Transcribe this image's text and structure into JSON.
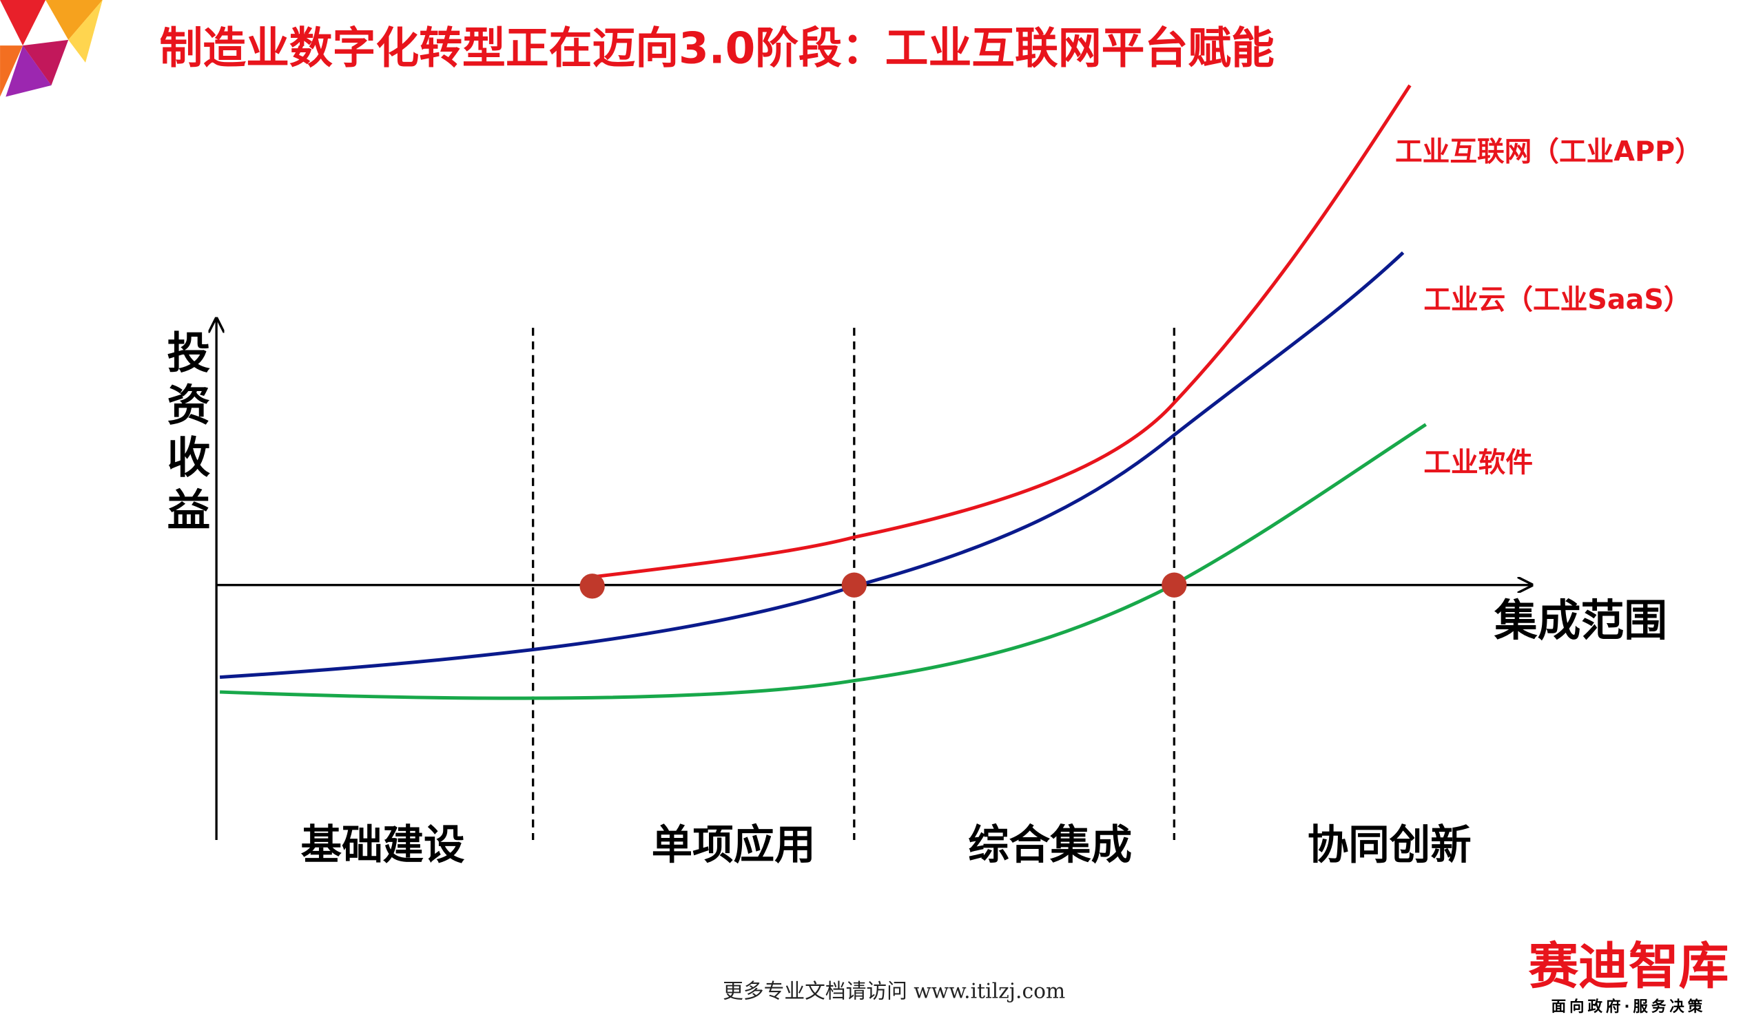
{
  "header": {
    "title": "制造业数字化转型正在迈向3.0阶段：工业互联网平台赋能"
  },
  "diagram": {
    "y_axis_label": "投资收益",
    "x_axis_label": "集成范围",
    "curves": [
      {
        "label": "工业互联网（工业APP）"
      },
      {
        "label": "工业云（工业SaaS）"
      },
      {
        "label": "工业软件"
      }
    ],
    "stages": [
      "基础建设",
      "单项应用",
      "综合集成",
      "协同创新"
    ]
  },
  "footer": {
    "text": "更多专业文档请访问 www.itilzj.com",
    "logo": "赛迪智库",
    "logo_slogan": "面向政府·服务决策"
  }
}
